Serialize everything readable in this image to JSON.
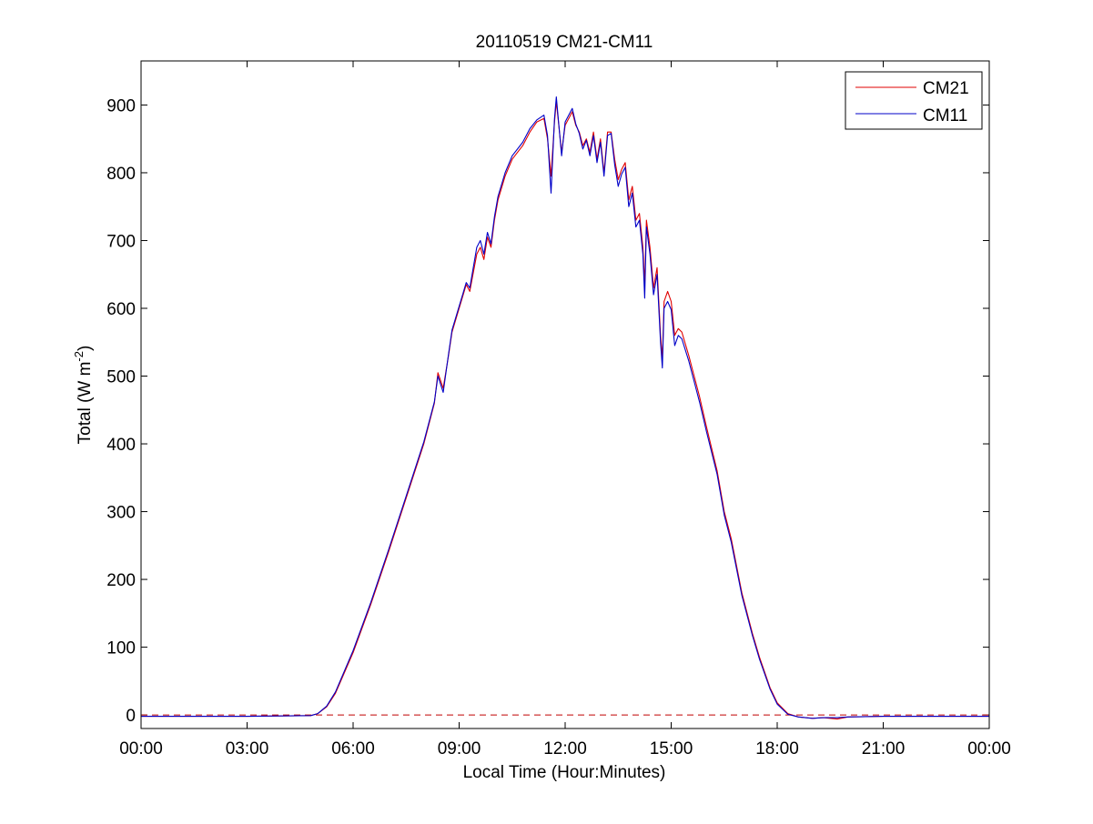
{
  "chart_data": {
    "type": "line",
    "title": "20110519 CM21-CM11",
    "xlabel": "Local Time (Hour:Minutes)",
    "ylabel_main": "Total (W m",
    "ylabel_sup": "-2",
    "ylabel_close": ")",
    "xlim": [
      0,
      24
    ],
    "ylim": [
      -20,
      965
    ],
    "x_ticks": [
      0,
      3,
      6,
      9,
      12,
      15,
      18,
      21,
      24
    ],
    "x_tick_labels": [
      "00:00",
      "03:00",
      "06:00",
      "09:00",
      "12:00",
      "15:00",
      "18:00",
      "21:00",
      "00:00"
    ],
    "y_ticks": [
      0,
      100,
      200,
      300,
      400,
      500,
      600,
      700,
      800,
      900
    ],
    "y_tick_labels": [
      "0",
      "100",
      "200",
      "300",
      "400",
      "500",
      "600",
      "700",
      "800",
      "900"
    ],
    "grid": false,
    "legend_position": "top-right",
    "reference_line": {
      "y": 0,
      "color": "#c00000",
      "style": "dashed"
    },
    "series": [
      {
        "name": "CM21",
        "color": "#e00000",
        "x": [
          0,
          3,
          4.8,
          5.0,
          5.25,
          5.5,
          6.0,
          6.5,
          7.0,
          7.5,
          8.0,
          8.3,
          8.4,
          8.55,
          8.7,
          8.8,
          9.0,
          9.2,
          9.3,
          9.5,
          9.6,
          9.7,
          9.8,
          9.9,
          10.0,
          10.1,
          10.3,
          10.5,
          10.8,
          11.0,
          11.2,
          11.4,
          11.5,
          11.6,
          11.7,
          11.75,
          11.9,
          12.0,
          12.2,
          12.3,
          12.4,
          12.5,
          12.6,
          12.7,
          12.8,
          12.9,
          13.0,
          13.1,
          13.2,
          13.3,
          13.4,
          13.5,
          13.6,
          13.7,
          13.8,
          13.9,
          14.0,
          14.1,
          14.2,
          14.25,
          14.3,
          14.4,
          14.5,
          14.6,
          14.7,
          14.75,
          14.8,
          14.9,
          15.0,
          15.1,
          15.2,
          15.3,
          15.5,
          15.8,
          16.0,
          16.3,
          16.5,
          16.7,
          17.0,
          17.3,
          17.5,
          17.8,
          18.0,
          18.3,
          18.6,
          18.8,
          19.0,
          19.3,
          19.7,
          20.0,
          21.0,
          24.0
        ],
        "y": [
          -2,
          -2,
          -1,
          2,
          12,
          32,
          92,
          163,
          240,
          320,
          400,
          460,
          505,
          482,
          530,
          565,
          600,
          635,
          625,
          680,
          690,
          672,
          705,
          690,
          730,
          760,
          795,
          820,
          840,
          860,
          875,
          880,
          850,
          795,
          875,
          905,
          830,
          870,
          890,
          870,
          860,
          840,
          850,
          830,
          860,
          820,
          850,
          800,
          860,
          860,
          820,
          790,
          805,
          815,
          760,
          780,
          730,
          740,
          690,
          635,
          730,
          690,
          630,
          660,
          560,
          525,
          610,
          625,
          610,
          560,
          570,
          565,
          530,
          470,
          425,
          360,
          300,
          260,
          180,
          120,
          85,
          40,
          18,
          2,
          -3,
          -4,
          -5,
          -4,
          -6,
          -3,
          -2,
          -2
        ]
      },
      {
        "name": "CM11",
        "color": "#0000c8",
        "x": [
          0,
          3,
          4.8,
          5.0,
          5.25,
          5.5,
          6.0,
          6.5,
          7.0,
          7.5,
          8.0,
          8.3,
          8.4,
          8.55,
          8.7,
          8.8,
          9.0,
          9.2,
          9.3,
          9.5,
          9.6,
          9.7,
          9.8,
          9.9,
          10.0,
          10.1,
          10.3,
          10.5,
          10.8,
          11.0,
          11.2,
          11.4,
          11.5,
          11.6,
          11.7,
          11.75,
          11.9,
          12.0,
          12.2,
          12.3,
          12.4,
          12.5,
          12.6,
          12.7,
          12.8,
          12.9,
          13.0,
          13.1,
          13.2,
          13.3,
          13.4,
          13.5,
          13.6,
          13.7,
          13.8,
          13.9,
          14.0,
          14.1,
          14.2,
          14.25,
          14.3,
          14.4,
          14.5,
          14.6,
          14.7,
          14.75,
          14.8,
          14.9,
          15.0,
          15.1,
          15.2,
          15.3,
          15.5,
          15.8,
          16.0,
          16.3,
          16.5,
          16.7,
          17.0,
          17.3,
          17.5,
          17.8,
          18.0,
          18.3,
          18.6,
          18.8,
          19.0,
          19.3,
          19.7,
          20.0,
          21.0,
          24.0
        ],
        "y": [
          -2,
          -2,
          -1,
          2,
          13,
          34,
          95,
          166,
          243,
          323,
          403,
          462,
          500,
          476,
          532,
          568,
          603,
          638,
          630,
          690,
          700,
          680,
          712,
          695,
          735,
          765,
          800,
          825,
          845,
          865,
          878,
          885,
          855,
          770,
          880,
          912,
          825,
          875,
          895,
          872,
          858,
          835,
          848,
          825,
          855,
          815,
          845,
          795,
          855,
          858,
          812,
          780,
          798,
          808,
          750,
          770,
          720,
          730,
          680,
          615,
          720,
          680,
          620,
          650,
          550,
          512,
          600,
          610,
          598,
          545,
          560,
          555,
          522,
          462,
          418,
          355,
          295,
          255,
          176,
          117,
          82,
          38,
          16,
          1,
          -3,
          -4,
          -5,
          -4,
          -4,
          -3,
          -2,
          -2
        ]
      }
    ]
  }
}
